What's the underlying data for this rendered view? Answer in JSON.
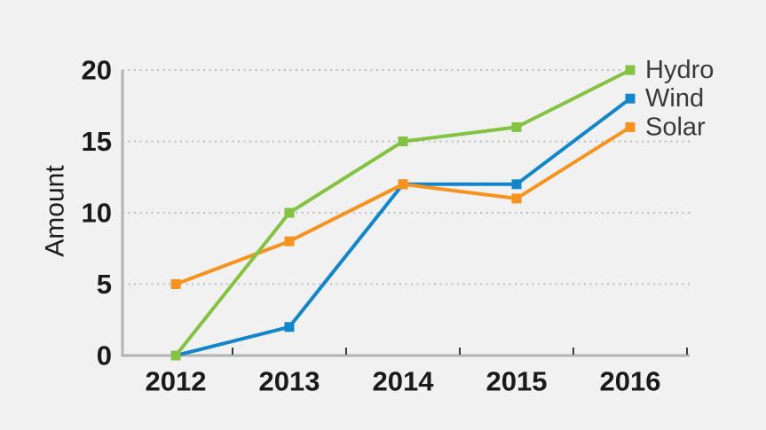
{
  "chart": {
    "background_color": "#f1f1f2",
    "axis_color": "#b4b4b4",
    "grid_color": "#bdbdbd",
    "tick_color": "#3a3a3a",
    "label_color": "#1a1a1a",
    "legend_text_color": "#3a3a3a"
  },
  "chart_data": {
    "type": "line",
    "title": "",
    "xlabel": "",
    "ylabel": "Amount",
    "categories": [
      "2012",
      "2013",
      "2014",
      "2015",
      "2016"
    ],
    "series": [
      {
        "name": "Hydro",
        "color": "#84c341",
        "values": [
          0,
          10,
          15,
          16,
          20
        ]
      },
      {
        "name": "Wind",
        "color": "#1386c9",
        "values": [
          0,
          2,
          12,
          12,
          18
        ]
      },
      {
        "name": "Solar",
        "color": "#f6921e",
        "values": [
          5,
          8,
          12,
          11,
          16
        ]
      }
    ],
    "ylim": [
      0,
      20
    ],
    "yticks": [
      0,
      5,
      10,
      15,
      20
    ],
    "grid": "horizontal dotted",
    "legend_position": "end-of-line",
    "marker": "square"
  }
}
